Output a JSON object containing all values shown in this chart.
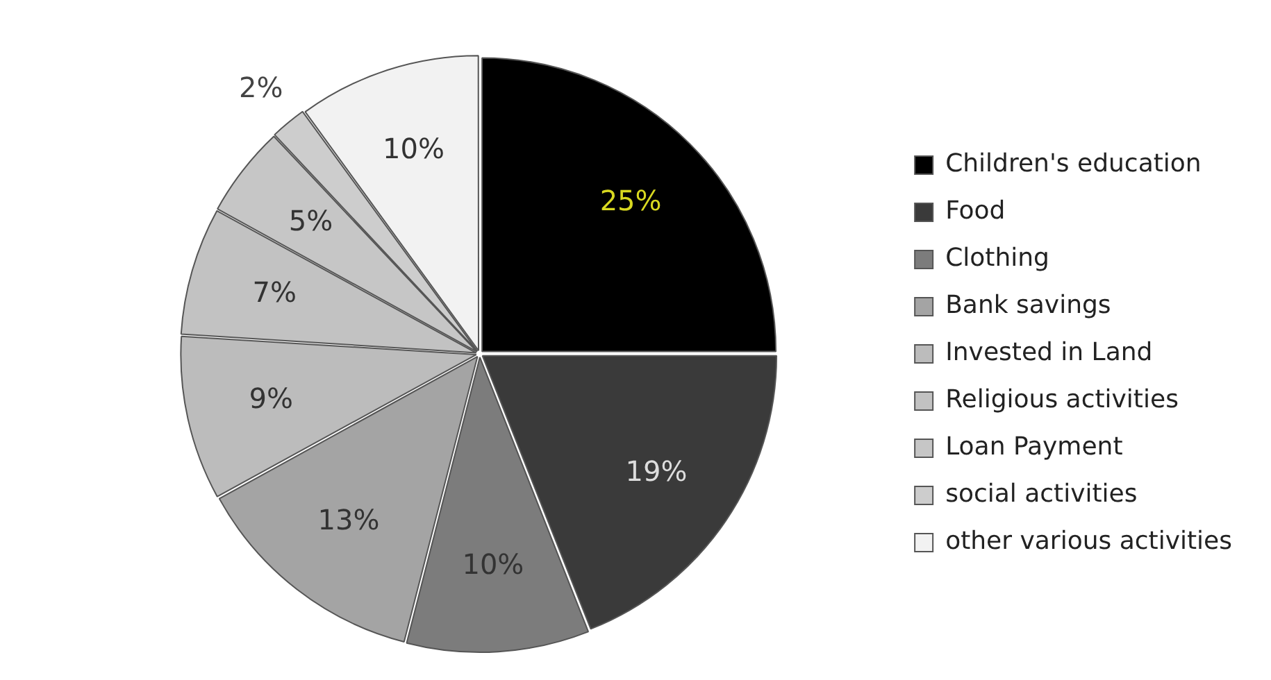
{
  "chart_data": {
    "type": "pie",
    "categories": [
      "Children's education",
      "Food",
      "Clothing",
      "Bank savings",
      "Invested in Land",
      "Religious activities",
      "Loan Payment",
      "social activities",
      "other various activities"
    ],
    "values": [
      25,
      19,
      10,
      13,
      9,
      7,
      5,
      2,
      10
    ],
    "value_labels": [
      "25%",
      "19%",
      "10%",
      "13%",
      "9%",
      "7%",
      "5%",
      "2%",
      "10%"
    ],
    "colors": [
      "#000000",
      "#3a3a3a",
      "#7c7c7c",
      "#a4a4a4",
      "#bcbcbc",
      "#c2c2c2",
      "#c6c6c6",
      "#cdcdcd",
      "#f2f2f2"
    ],
    "legend": "right"
  }
}
